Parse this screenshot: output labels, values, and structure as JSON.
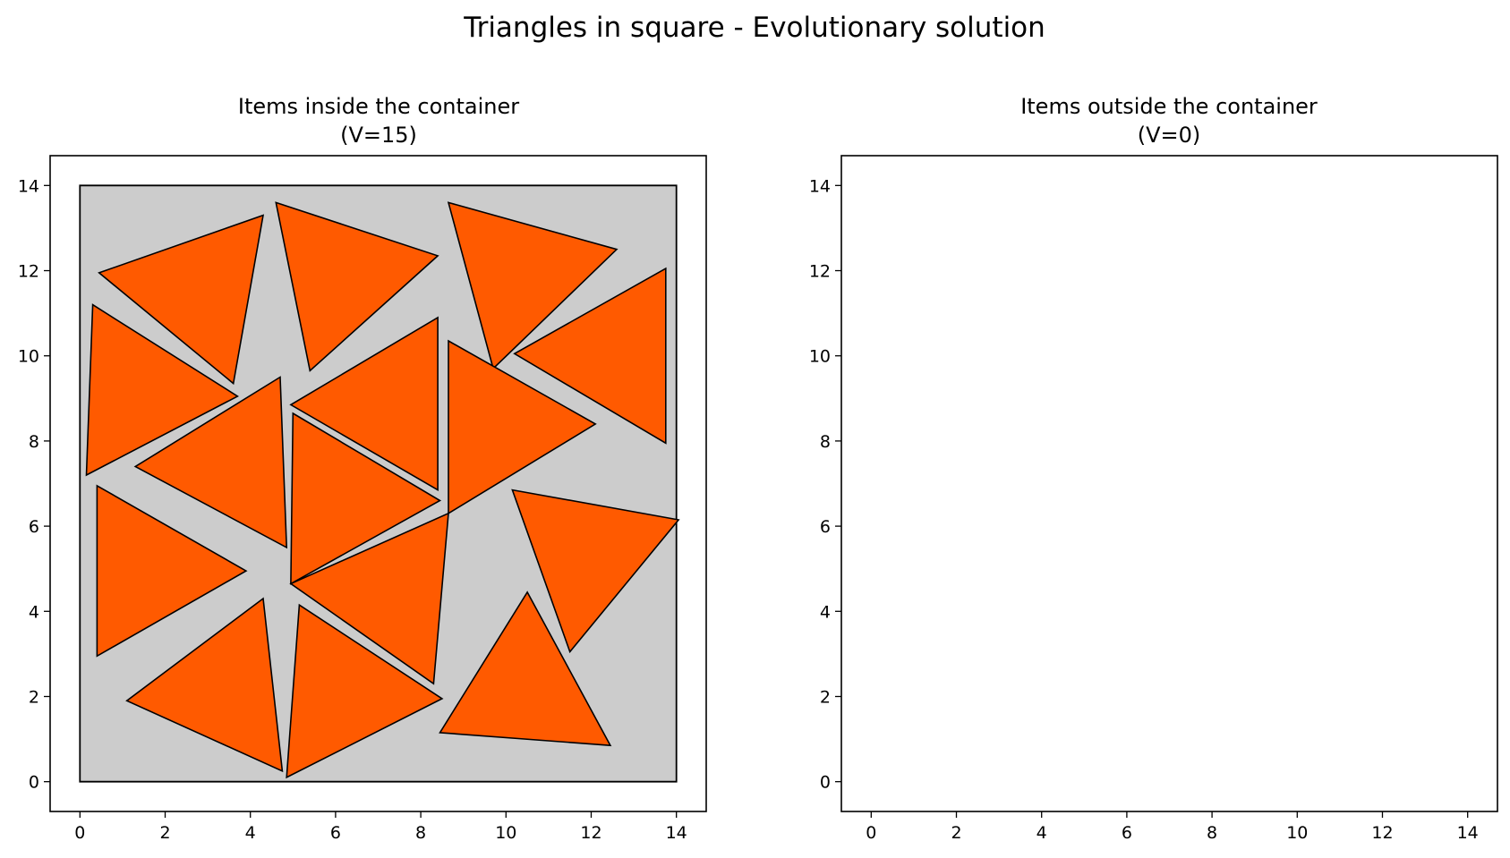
{
  "figure": {
    "title": "Triangles in square - Evolutionary solution"
  },
  "chart_data": [
    {
      "type": "scatter",
      "title_lines": [
        "Items inside the container",
        "(V=15)"
      ],
      "xlim": [
        -0.7,
        14.7
      ],
      "ylim": [
        -0.7,
        14.7
      ],
      "x_ticks": [
        0,
        2,
        4,
        6,
        8,
        10,
        12,
        14
      ],
      "y_ticks": [
        0,
        2,
        4,
        6,
        8,
        10,
        12,
        14
      ],
      "grid": false,
      "container": {
        "points": [
          [
            0,
            0
          ],
          [
            14,
            0
          ],
          [
            14,
            14
          ],
          [
            0,
            14
          ]
        ],
        "fill": "#cccccc",
        "stroke": "#000000"
      },
      "item_fill": "#ff5a00",
      "item_stroke": "#000000",
      "items": [
        [
          [
            0.45,
            11.95
          ],
          [
            4.3,
            13.3
          ],
          [
            3.6,
            9.35
          ]
        ],
        [
          [
            4.6,
            13.6
          ],
          [
            8.4,
            12.35
          ],
          [
            5.4,
            9.65
          ]
        ],
        [
          [
            8.65,
            13.6
          ],
          [
            12.6,
            12.5
          ],
          [
            9.7,
            9.7
          ]
        ],
        [
          [
            0.3,
            11.2
          ],
          [
            3.7,
            9.05
          ],
          [
            0.15,
            7.2
          ]
        ],
        [
          [
            13.75,
            12.05
          ],
          [
            10.2,
            10.05
          ],
          [
            13.75,
            7.95
          ]
        ],
        [
          [
            4.7,
            9.5
          ],
          [
            1.3,
            7.4
          ],
          [
            4.85,
            5.5
          ]
        ],
        [
          [
            8.4,
            10.9
          ],
          [
            4.95,
            8.85
          ],
          [
            8.4,
            6.85
          ]
        ],
        [
          [
            8.65,
            10.35
          ],
          [
            12.1,
            8.4
          ],
          [
            8.65,
            6.3
          ]
        ],
        [
          [
            5.0,
            8.65
          ],
          [
            8.45,
            6.6
          ],
          [
            4.95,
            4.65
          ]
        ],
        [
          [
            0.4,
            6.95
          ],
          [
            3.9,
            4.95
          ],
          [
            0.4,
            2.95
          ]
        ],
        [
          [
            10.15,
            6.85
          ],
          [
            14.05,
            6.15
          ],
          [
            11.5,
            3.05
          ]
        ],
        [
          [
            8.65,
            6.3
          ],
          [
            8.3,
            2.3
          ],
          [
            4.95,
            4.65
          ]
        ],
        [
          [
            10.5,
            4.45
          ],
          [
            8.45,
            1.15
          ],
          [
            12.45,
            0.85
          ]
        ],
        [
          [
            4.3,
            4.3
          ],
          [
            1.1,
            1.9
          ],
          [
            4.75,
            0.25
          ]
        ],
        [
          [
            5.15,
            4.15
          ],
          [
            8.5,
            1.95
          ],
          [
            4.85,
            0.1
          ]
        ]
      ]
    },
    {
      "type": "scatter",
      "title_lines": [
        "Items outside the container",
        "(V=0)"
      ],
      "xlim": [
        -0.7,
        14.7
      ],
      "ylim": [
        -0.7,
        14.7
      ],
      "x_ticks": [
        0,
        2,
        4,
        6,
        8,
        10,
        12,
        14
      ],
      "y_ticks": [
        0,
        2,
        4,
        6,
        8,
        10,
        12,
        14
      ],
      "grid": false,
      "items": []
    }
  ]
}
